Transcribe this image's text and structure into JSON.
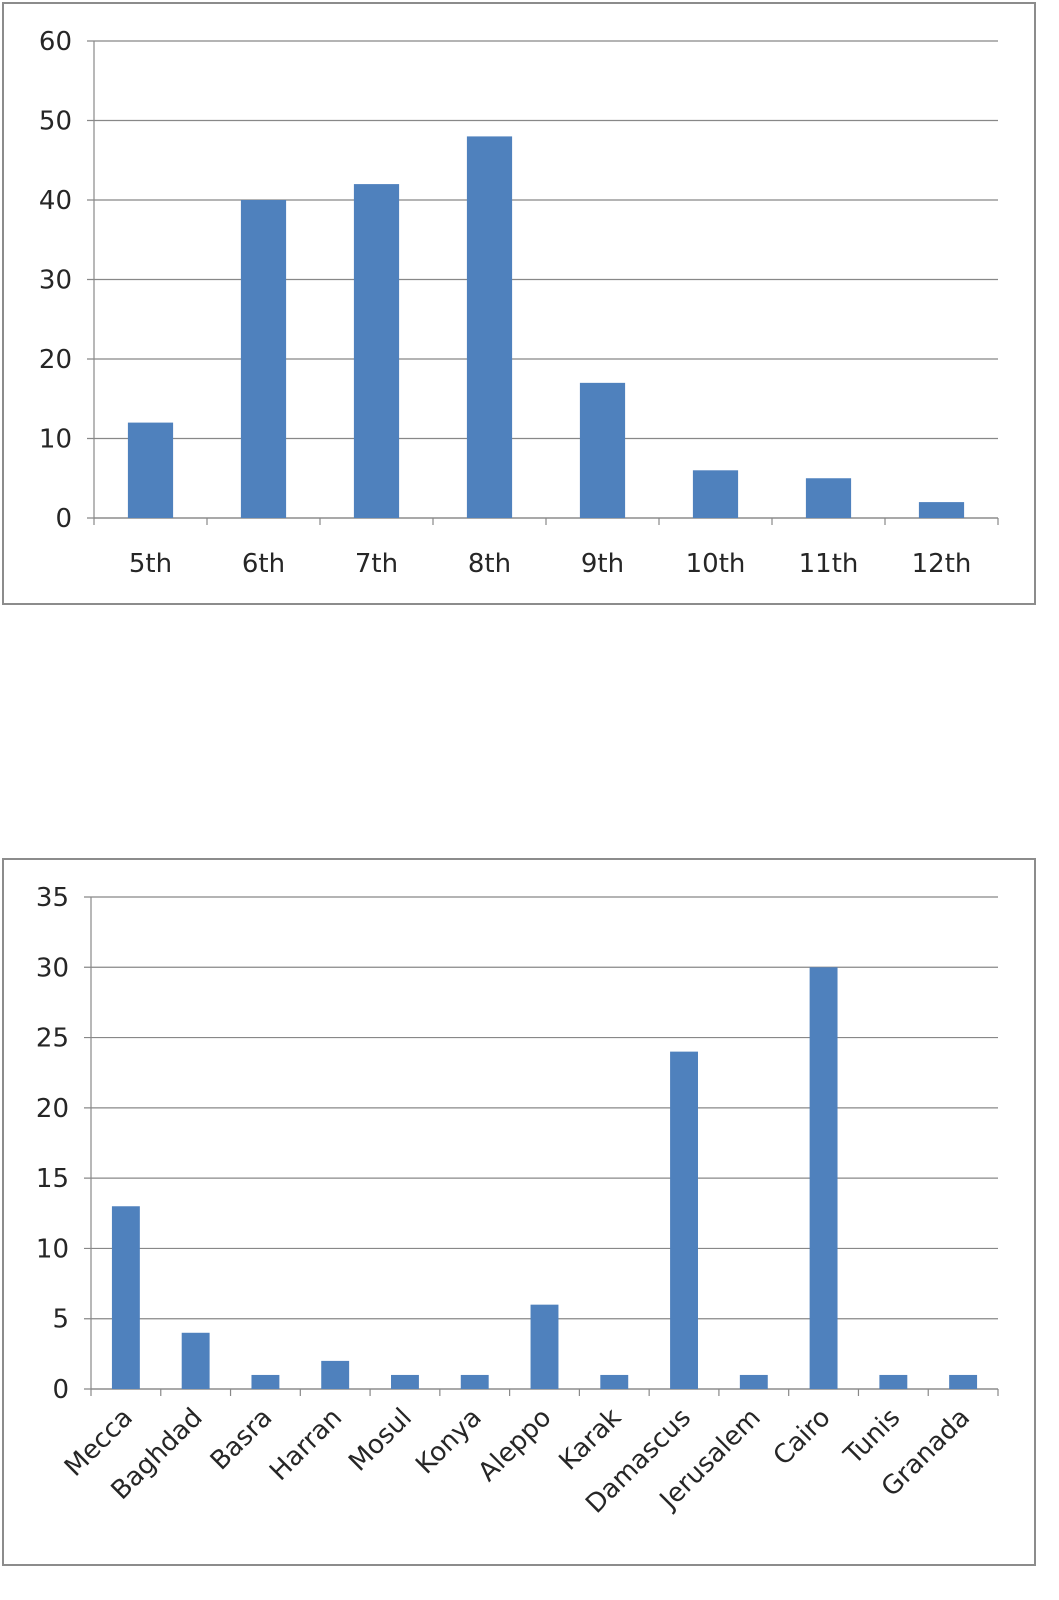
{
  "chart_data": [
    {
      "type": "bar",
      "categories": [
        "5th",
        "6th",
        "7th",
        "8th",
        "9th",
        "10th",
        "11th",
        "12th"
      ],
      "values": [
        12,
        40,
        42,
        48,
        17,
        6,
        5,
        2
      ],
      "yticks": [
        "0",
        "10",
        "20",
        "30",
        "40",
        "50",
        "60"
      ],
      "ylim": [
        0,
        60
      ],
      "title": "",
      "xlabel": "",
      "ylabel": "",
      "grid": true,
      "legend": "none",
      "bar_color": "#4F81BD",
      "grid_color": "#888888"
    },
    {
      "type": "bar",
      "categories": [
        "Mecca",
        "Baghdad",
        "Basra",
        "Harran",
        "Mosul",
        "Konya",
        "Aleppo",
        "Karak",
        "Damascus",
        "Jerusalem",
        "Cairo",
        "Tunis",
        "Granada"
      ],
      "values": [
        13,
        4,
        1,
        2,
        1,
        1,
        6,
        1,
        24,
        1,
        30,
        1,
        1
      ],
      "yticks": [
        "0",
        "5",
        "10",
        "15",
        "20",
        "25",
        "30",
        "35"
      ],
      "ylim": [
        0,
        35
      ],
      "title": "",
      "xlabel": "",
      "ylabel": "",
      "grid": true,
      "legend": "none",
      "bar_color": "#4F81BD",
      "grid_color": "#888888"
    }
  ]
}
